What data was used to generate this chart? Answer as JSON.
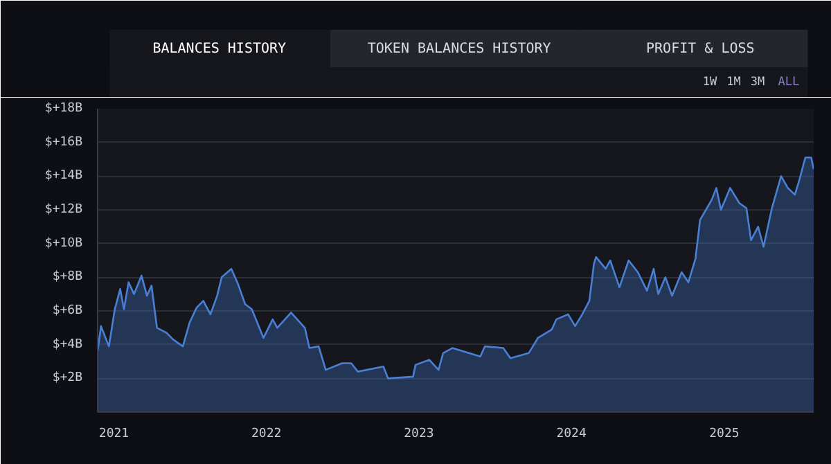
{
  "chart_data": {
    "type": "area",
    "annotations": [
      "BALANCES HISTORY",
      "TOKEN BALANCES HISTORY",
      "PROFIT & LOSS",
      "1W",
      "1M",
      "3M",
      "ALL"
    ],
    "x": [
      "2020-11-23",
      "2020-12-01",
      "2020-12-20",
      "2021-01-03",
      "2021-01-16",
      "2021-01-25",
      "2021-02-05",
      "2021-02-18",
      "2021-03-08",
      "2021-03-21",
      "2021-04-01",
      "2021-04-14",
      "2021-05-07",
      "2021-05-23",
      "2021-06-15",
      "2021-07-01",
      "2021-07-18",
      "2021-08-03",
      "2021-08-20",
      "2021-09-05",
      "2021-09-16",
      "2021-10-09",
      "2021-10-25",
      "2021-11-11",
      "2021-11-27",
      "2021-12-25",
      "2022-01-16",
      "2022-01-27",
      "2022-03-01",
      "2022-04-03",
      "2022-04-14",
      "2022-05-06",
      "2022-05-23",
      "2022-07-01",
      "2022-07-23",
      "2022-08-08",
      "2022-10-08",
      "2022-10-19",
      "2022-12-18",
      "2022-12-24",
      "2023-01-26",
      "2023-02-17",
      "2023-02-28",
      "2023-03-22",
      "2023-05-28",
      "2023-06-08",
      "2023-07-22",
      "2023-08-08",
      "2023-09-21",
      "2023-10-13",
      "2023-11-15",
      "2023-11-26",
      "2023-12-24",
      "2024-01-10",
      "2024-01-27",
      "2024-02-13",
      "2024-02-24",
      "2024-02-29",
      "2024-03-23",
      "2024-04-03",
      "2024-04-25",
      "2024-05-17",
      "2024-06-08",
      "2024-06-30",
      "2024-07-16",
      "2024-07-27",
      "2024-08-13",
      "2024-08-29",
      "2024-09-21",
      "2024-10-07",
      "2024-10-24",
      "2024-11-04",
      "2024-12-02",
      "2024-12-13",
      "2024-12-24",
      "2025-01-15",
      "2025-02-06",
      "2025-02-23",
      "2025-03-06",
      "2025-03-23",
      "2025-04-05",
      "2025-04-25",
      "2025-05-17",
      "2025-06-02",
      "2025-06-19",
      "2025-06-30",
      "2025-07-14",
      "2025-07-28",
      "2025-08-03"
    ],
    "series": [
      {
        "color": "#4a7fd6",
        "values": [
          3.6,
          5.1,
          3.9,
          6.1,
          7.3,
          6.1,
          7.7,
          7.0,
          8.1,
          6.9,
          7.5,
          5.0,
          4.7,
          4.3,
          3.9,
          5.3,
          6.2,
          6.6,
          5.8,
          6.9,
          8.0,
          8.5,
          7.6,
          6.4,
          6.1,
          4.4,
          5.5,
          5.0,
          5.9,
          5.0,
          3.8,
          3.9,
          2.5,
          2.9,
          2.9,
          2.4,
          2.7,
          2.0,
          2.1,
          2.8,
          3.1,
          2.5,
          3.5,
          3.8,
          3.3,
          3.9,
          3.8,
          3.2,
          3.5,
          4.4,
          4.9,
          5.5,
          5.8,
          5.1,
          5.8,
          6.6,
          8.8,
          9.2,
          8.5,
          9.0,
          7.4,
          9.0,
          8.3,
          7.2,
          8.5,
          7.0,
          8.0,
          6.9,
          8.3,
          7.7,
          9.1,
          11.4,
          12.6,
          13.3,
          12.0,
          13.3,
          12.4,
          12.1,
          10.2,
          11.0,
          9.8,
          12.1,
          14.0,
          13.3,
          12.9,
          13.8,
          15.1,
          15.1,
          14.4
        ]
      }
    ],
    "xlim": [
      "2020-11-23",
      "2025-08-03"
    ],
    "xticks": [
      "2021",
      "2022",
      "2023",
      "2024",
      "2025"
    ],
    "ylim": [
      0,
      18
    ],
    "yticks": [
      {
        "value": 2,
        "label": "$+2B"
      },
      {
        "value": 4,
        "label": "$+4B"
      },
      {
        "value": 6,
        "label": "$+6B"
      },
      {
        "value": 8,
        "label": "$+8B"
      },
      {
        "value": 10,
        "label": "$+10B"
      },
      {
        "value": 12,
        "label": "$+12B"
      },
      {
        "value": 14,
        "label": "$+14B"
      },
      {
        "value": 16,
        "label": "$+16B"
      },
      {
        "value": 18,
        "label": "$+18B"
      }
    ],
    "grid": "y"
  }
}
